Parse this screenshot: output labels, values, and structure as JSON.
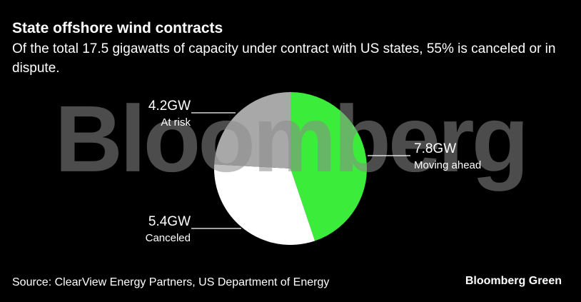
{
  "chart_data": {
    "type": "pie",
    "title": "State offshore wind contracts",
    "subtitle": "Of the total 17.5 gigawatts of capacity under contract with US states, 55% is canceled or in dispute.",
    "categories": [
      "Moving ahead",
      "Canceled",
      "At risk"
    ],
    "values": [
      7.8,
      5.4,
      4.2
    ],
    "value_labels": [
      "7.8GW",
      "5.4GW",
      "4.2GW"
    ],
    "colors": [
      "#3cec3a",
      "#ffffff",
      "#a8a8a8"
    ]
  },
  "watermark": "Bloomberg",
  "footer": {
    "source": "Source: ClearView Energy Partners, US Department of Energy",
    "brand": "Bloomberg Green"
  }
}
